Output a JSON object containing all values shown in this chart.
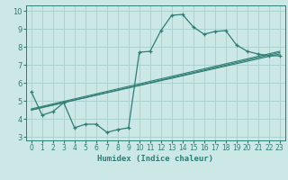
{
  "title": "",
  "xlabel": "Humidex (Indice chaleur)",
  "ylabel": "",
  "bg_color": "#cce8e6",
  "line_color": "#2e7d73",
  "grid_color": "#a8d0cc",
  "xlim": [
    -0.5,
    23.5
  ],
  "ylim": [
    2.8,
    10.3
  ],
  "xticks": [
    0,
    1,
    2,
    3,
    4,
    5,
    6,
    7,
    8,
    9,
    10,
    11,
    12,
    13,
    14,
    15,
    16,
    17,
    18,
    19,
    20,
    21,
    22,
    23
  ],
  "yticks": [
    3,
    4,
    5,
    6,
    7,
    8,
    9,
    10
  ],
  "curve1_x": [
    0,
    1,
    2,
    3,
    4,
    5,
    6,
    7,
    8,
    9,
    10,
    11,
    12,
    13,
    14,
    15,
    16,
    17,
    18,
    19,
    20,
    21,
    22,
    23
  ],
  "curve1_y": [
    5.5,
    4.2,
    4.4,
    4.9,
    3.5,
    3.7,
    3.7,
    3.25,
    3.4,
    3.5,
    7.7,
    7.75,
    8.9,
    9.75,
    9.8,
    9.1,
    8.7,
    8.85,
    8.9,
    8.1,
    7.75,
    7.6,
    7.5,
    7.5
  ],
  "line2_x": [
    0,
    23
  ],
  "line2_y": [
    4.5,
    7.6
  ],
  "line3_x": [
    0,
    23
  ],
  "line3_y": [
    4.55,
    7.75
  ],
  "line4_x": [
    0,
    23
  ],
  "line4_y": [
    4.48,
    7.68
  ]
}
